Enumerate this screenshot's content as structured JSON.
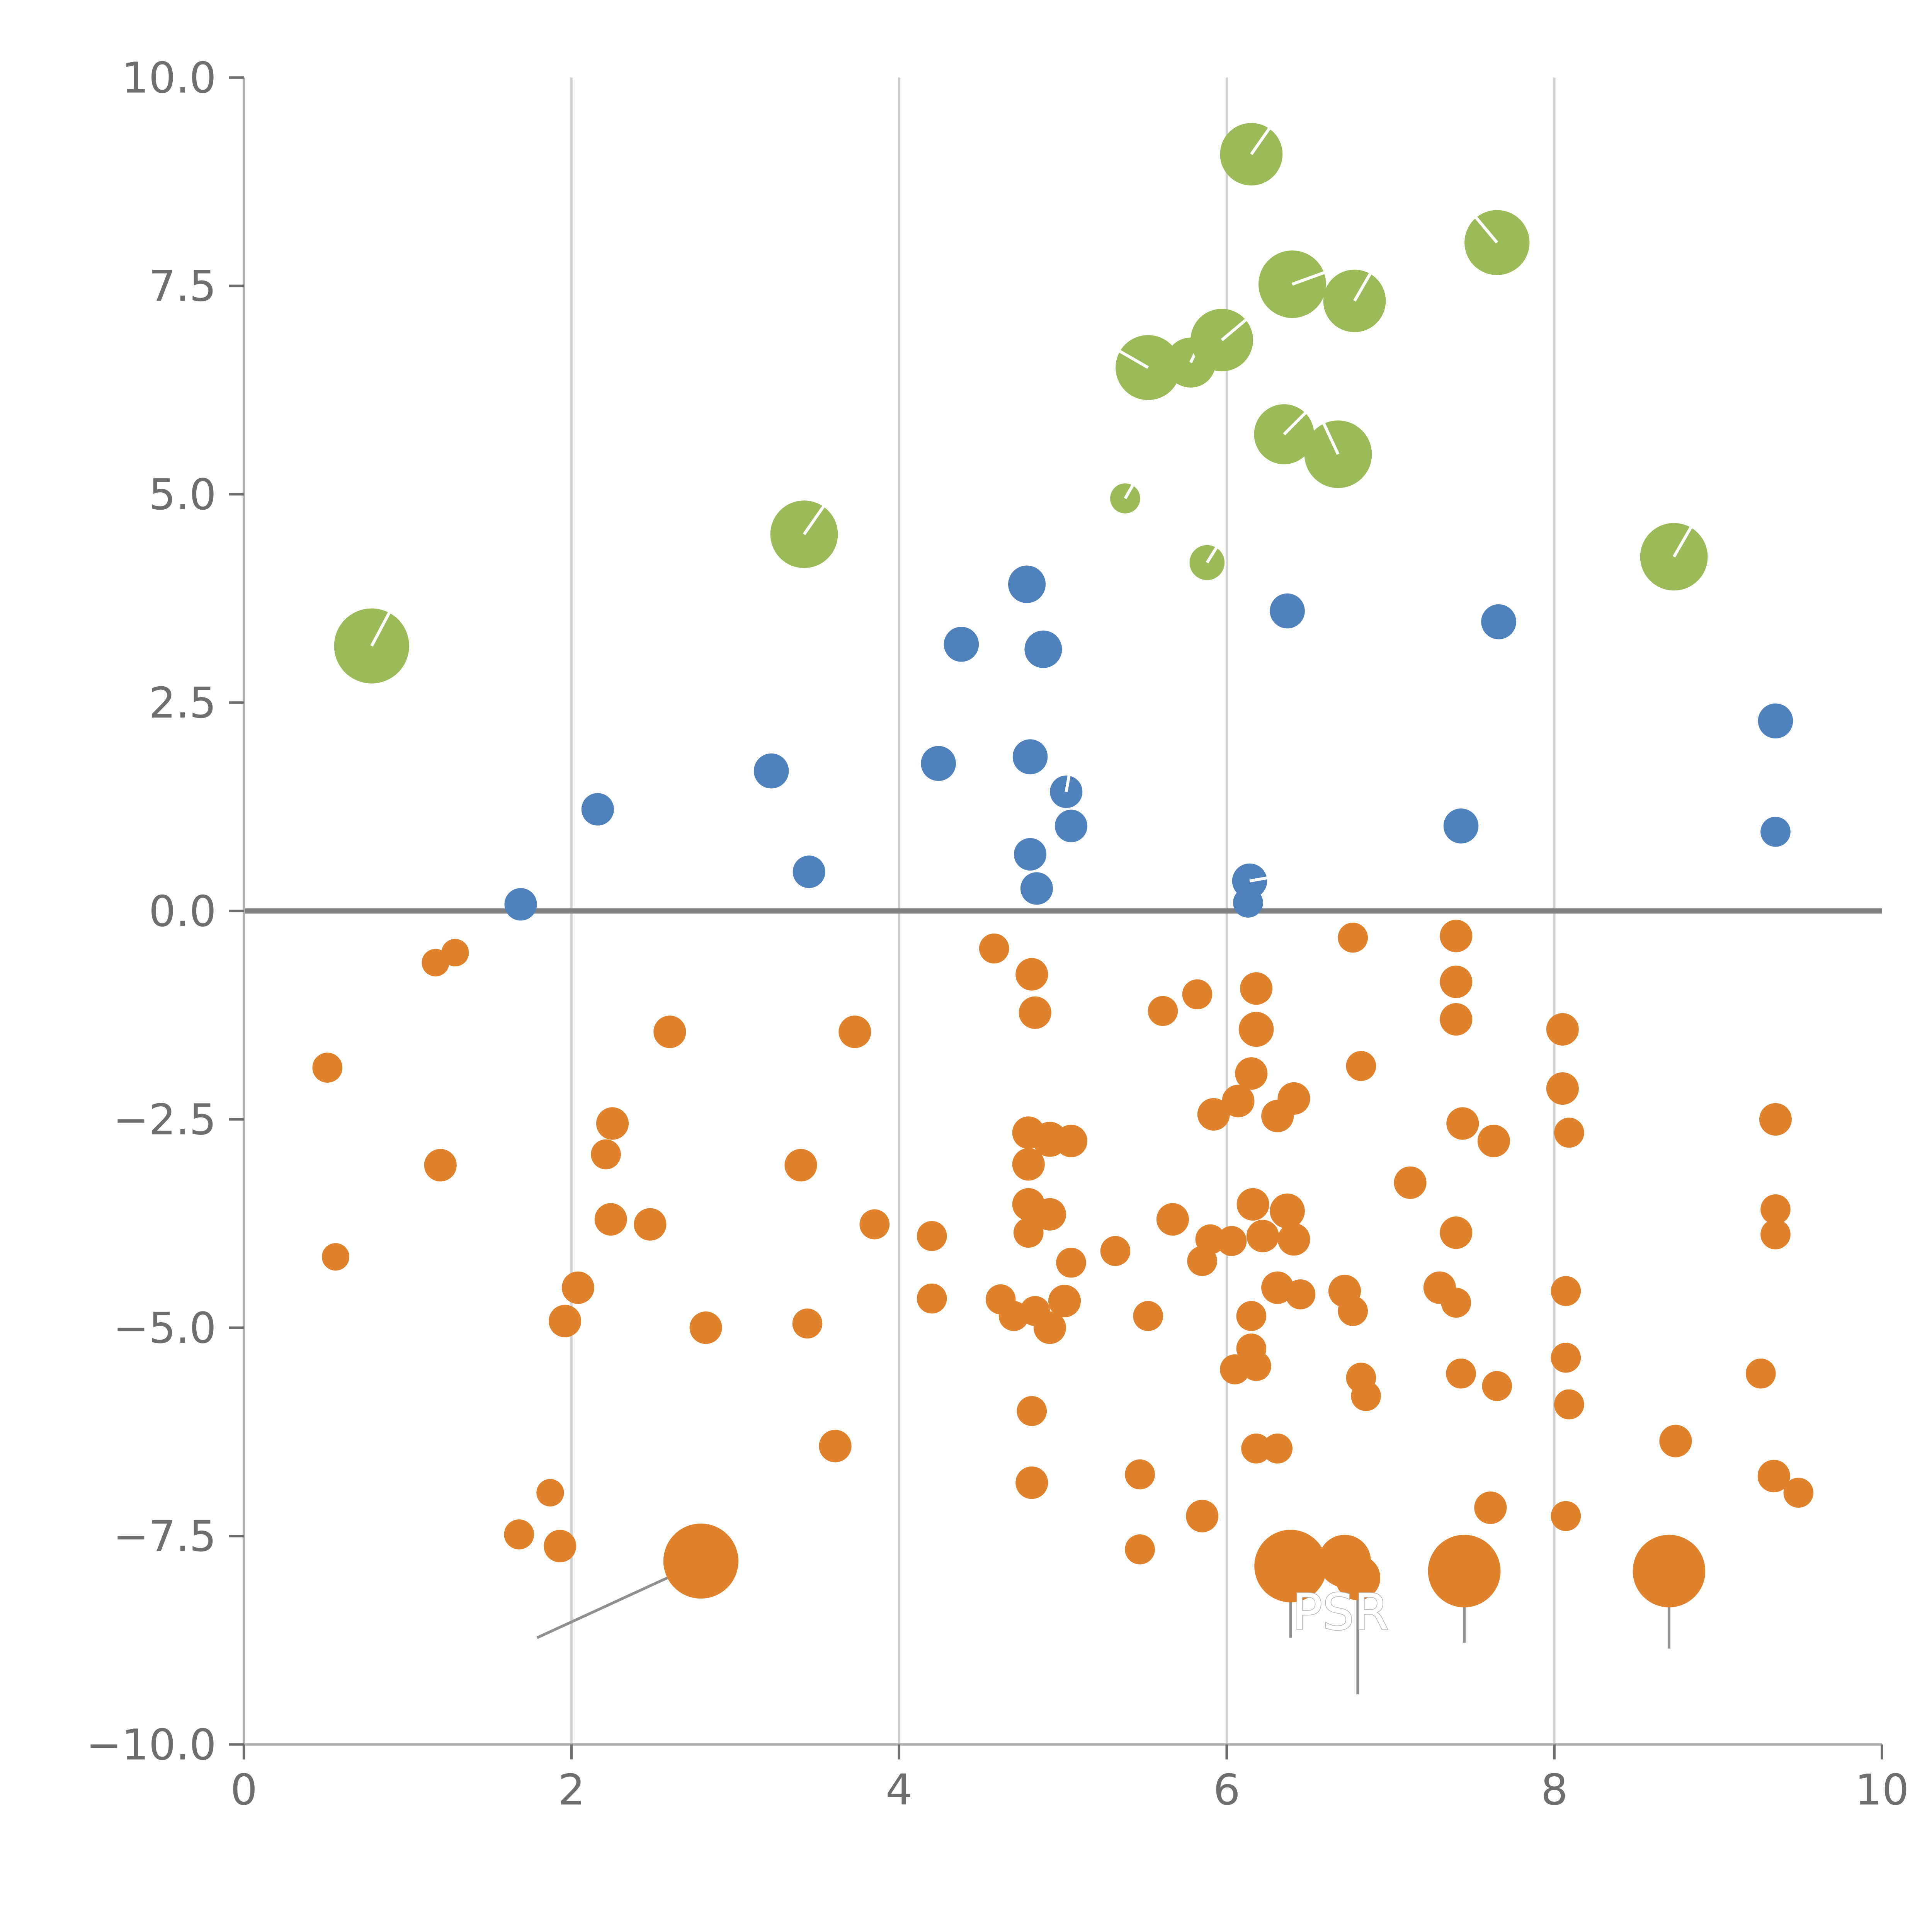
{
  "chart_data": {
    "type": "scatter",
    "title": "",
    "xlabel": "",
    "ylabel": "",
    "xlim": [
      0,
      10
    ],
    "ylim": [
      -10,
      10
    ],
    "grid": "vertical-only",
    "legend": null,
    "x_ticks": [
      0,
      2,
      4,
      6,
      8,
      10
    ],
    "x_tick_labels": [
      "0",
      "2",
      "4",
      "6",
      "8",
      "10"
    ],
    "y_ticks": [
      -10,
      -7.5,
      -5,
      -2.5,
      0,
      2.5,
      5,
      7.5,
      10
    ],
    "y_tick_labels": [
      "−10.0",
      "−7.5",
      "−5.0",
      "−2.5",
      "0.0",
      "2.5",
      "5.0",
      "7.5",
      "10.0"
    ],
    "gridlines_x": [
      2,
      4,
      6,
      8
    ],
    "zero_line_y": 0,
    "style": {
      "grid_color": "#cfcfcf",
      "spine_color": "#b0b0b0",
      "tick_color": "#6e6e6e",
      "zero_line_color": "#7f7f7f",
      "annotation_line_color": "#8f8f8f",
      "label_text_color": "#ffffff",
      "label_text_outline": "#b5b5b5"
    },
    "series": [
      {
        "name": "orange",
        "color": "#e0812c",
        "points": [
          [
            1.17,
            -0.62,
            11
          ],
          [
            1.29,
            -0.5,
            11
          ],
          [
            0.51,
            -1.88,
            12
          ],
          [
            1.2,
            -3.05,
            13
          ],
          [
            0.56,
            -4.15,
            11
          ],
          [
            1.68,
            -7.48,
            12
          ],
          [
            1.87,
            -6.98,
            11
          ],
          [
            1.93,
            -7.62,
            13
          ],
          [
            2.04,
            -4.52,
            13
          ],
          [
            1.96,
            -4.92,
            13
          ],
          [
            2.25,
            -2.55,
            13
          ],
          [
            2.21,
            -2.92,
            12
          ],
          [
            2.24,
            -3.7,
            13
          ],
          [
            2.48,
            -3.76,
            13
          ],
          [
            2.6,
            -1.45,
            13
          ],
          [
            2.82,
            -5.0,
            13
          ],
          [
            2.79,
            -7.8,
            30
          ],
          [
            3.4,
            -3.05,
            13
          ],
          [
            3.44,
            -4.95,
            12
          ],
          [
            3.61,
            -6.42,
            13
          ],
          [
            3.73,
            -1.45,
            13
          ],
          [
            3.85,
            -3.76,
            12
          ],
          [
            4.2,
            -3.9,
            12
          ],
          [
            4.2,
            -4.65,
            12
          ],
          [
            4.58,
            -0.45,
            12
          ],
          [
            4.81,
            -0.76,
            13
          ],
          [
            4.83,
            -1.22,
            13
          ],
          [
            4.79,
            -2.66,
            13
          ],
          [
            4.92,
            -2.74,
            14
          ],
          [
            5.05,
            -2.76,
            13
          ],
          [
            4.79,
            -3.04,
            13
          ],
          [
            4.79,
            -3.52,
            13
          ],
          [
            4.92,
            -3.64,
            13
          ],
          [
            4.79,
            -3.86,
            12
          ],
          [
            4.62,
            -4.66,
            12
          ],
          [
            4.7,
            -4.86,
            12
          ],
          [
            4.83,
            -4.8,
            12
          ],
          [
            4.92,
            -5.0,
            13
          ],
          [
            5.01,
            -4.68,
            13
          ],
          [
            5.05,
            -4.22,
            12
          ],
          [
            4.81,
            -6.0,
            12
          ],
          [
            4.81,
            -6.86,
            13
          ],
          [
            5.32,
            -4.08,
            12
          ],
          [
            5.47,
            -6.76,
            12
          ],
          [
            5.47,
            -7.66,
            12
          ],
          [
            5.52,
            -4.86,
            12
          ],
          [
            5.61,
            -1.2,
            12
          ],
          [
            5.67,
            -3.7,
            13
          ],
          [
            5.82,
            -1.0,
            12
          ],
          [
            5.85,
            -4.2,
            12
          ],
          [
            5.85,
            -7.26,
            13
          ],
          [
            5.9,
            -3.94,
            12
          ],
          [
            5.92,
            -2.44,
            13
          ],
          [
            6.03,
            -3.96,
            12
          ],
          [
            6.07,
            -2.28,
            13
          ],
          [
            6.15,
            -1.95,
            13
          ],
          [
            6.16,
            -3.52,
            13
          ],
          [
            6.18,
            -0.93,
            13
          ],
          [
            6.18,
            -1.42,
            14
          ],
          [
            6.22,
            -3.9,
            13
          ],
          [
            6.31,
            -2.46,
            13
          ],
          [
            6.37,
            -3.6,
            14
          ],
          [
            6.41,
            -2.25,
            13
          ],
          [
            6.41,
            -3.94,
            13
          ],
          [
            6.31,
            -4.52,
            13
          ],
          [
            6.45,
            -4.6,
            12
          ],
          [
            6.15,
            -4.86,
            12
          ],
          [
            6.05,
            -5.5,
            12
          ],
          [
            6.15,
            -5.25,
            12
          ],
          [
            6.18,
            -5.46,
            12
          ],
          [
            6.18,
            -6.45,
            12
          ],
          [
            6.31,
            -6.45,
            12
          ],
          [
            6.39,
            -7.86,
            29
          ],
          [
            6.72,
            -7.8,
            21
          ],
          [
            6.8,
            -8.0,
            18
          ],
          [
            6.72,
            -4.56,
            13
          ],
          [
            6.77,
            -4.8,
            12
          ],
          [
            6.77,
            -0.32,
            12
          ],
          [
            6.82,
            -1.86,
            12
          ],
          [
            6.82,
            -5.6,
            12
          ],
          [
            6.85,
            -5.82,
            12
          ],
          [
            7.12,
            -3.26,
            13
          ],
          [
            7.3,
            -4.52,
            13
          ],
          [
            7.4,
            -0.3,
            13
          ],
          [
            7.4,
            -0.85,
            13
          ],
          [
            7.4,
            -1.3,
            13
          ],
          [
            7.44,
            -2.55,
            13
          ],
          [
            7.63,
            -2.76,
            13
          ],
          [
            7.4,
            -3.86,
            13
          ],
          [
            7.4,
            -4.7,
            12
          ],
          [
            7.43,
            -5.55,
            12
          ],
          [
            7.65,
            -5.7,
            12
          ],
          [
            7.61,
            -7.16,
            13
          ],
          [
            7.45,
            -7.92,
            29
          ],
          [
            8.05,
            -1.42,
            13
          ],
          [
            8.05,
            -2.13,
            13
          ],
          [
            8.09,
            -2.66,
            12
          ],
          [
            8.07,
            -4.56,
            12
          ],
          [
            8.07,
            -5.36,
            12
          ],
          [
            8.09,
            -5.92,
            12
          ],
          [
            8.07,
            -7.26,
            12
          ],
          [
            8.74,
            -6.36,
            13
          ],
          [
            8.7,
            -7.92,
            29
          ],
          [
            9.26,
            -5.55,
            12
          ],
          [
            9.35,
            -2.5,
            13
          ],
          [
            9.35,
            -3.58,
            12
          ],
          [
            9.35,
            -3.88,
            12
          ],
          [
            9.34,
            -6.78,
            13
          ],
          [
            9.49,
            -6.98,
            12
          ]
        ]
      },
      {
        "name": "blue",
        "color": "#4f81bd",
        "points": [
          [
            1.69,
            0.08,
            13
          ],
          [
            2.16,
            1.22,
            13
          ],
          [
            3.22,
            1.68,
            14
          ],
          [
            3.45,
            0.47,
            13
          ],
          [
            4.24,
            1.77,
            14
          ],
          [
            4.38,
            3.2,
            14
          ],
          [
            4.78,
            3.92,
            15
          ],
          [
            4.88,
            3.14,
            15
          ],
          [
            4.8,
            1.85,
            14
          ],
          [
            5.02,
            1.43,
            13,
            80
          ],
          [
            5.05,
            1.02,
            13
          ],
          [
            4.8,
            0.68,
            13
          ],
          [
            4.84,
            0.27,
            13
          ],
          [
            6.14,
            0.36,
            14,
            10
          ],
          [
            6.13,
            0.1,
            12
          ],
          [
            6.37,
            3.6,
            14
          ],
          [
            7.43,
            1.02,
            14
          ],
          [
            7.66,
            3.47,
            14
          ],
          [
            9.35,
            2.28,
            14
          ],
          [
            9.35,
            0.95,
            12
          ]
        ]
      },
      {
        "name": "green",
        "color": "#9bbb59",
        "points": [
          [
            0.78,
            3.18,
            30,
            62
          ],
          [
            3.42,
            4.52,
            27,
            55
          ],
          [
            5.38,
            4.95,
            12,
            60
          ],
          [
            5.88,
            4.18,
            14,
            58
          ],
          [
            5.52,
            6.52,
            26,
            150
          ],
          [
            5.78,
            6.58,
            20,
            65
          ],
          [
            5.97,
            6.85,
            25,
            40
          ],
          [
            6.4,
            7.52,
            27,
            20
          ],
          [
            6.78,
            7.32,
            25,
            60
          ],
          [
            6.35,
            5.72,
            24,
            45
          ],
          [
            6.68,
            5.48,
            27,
            115
          ],
          [
            6.15,
            9.08,
            25,
            55
          ],
          [
            7.65,
            8.02,
            26,
            130
          ],
          [
            8.73,
            4.25,
            27,
            60
          ]
        ]
      }
    ],
    "annotation_lines": [
      {
        "x1": 1.79,
        "y1": -8.72,
        "x2": 2.72,
        "y2": -7.88
      },
      {
        "x1": 6.39,
        "y1": -7.95,
        "x2": 6.39,
        "y2": -8.72
      },
      {
        "x1": 6.8,
        "y1": -8.05,
        "x2": 6.8,
        "y2": -9.4
      },
      {
        "x1": 7.45,
        "y1": -8.0,
        "x2": 7.45,
        "y2": -8.78
      },
      {
        "x1": 8.7,
        "y1": -8.0,
        "x2": 8.7,
        "y2": -8.85
      }
    ],
    "text_labels": [
      {
        "text": "PSR",
        "x": 6.4,
        "y": -8.62
      }
    ]
  }
}
